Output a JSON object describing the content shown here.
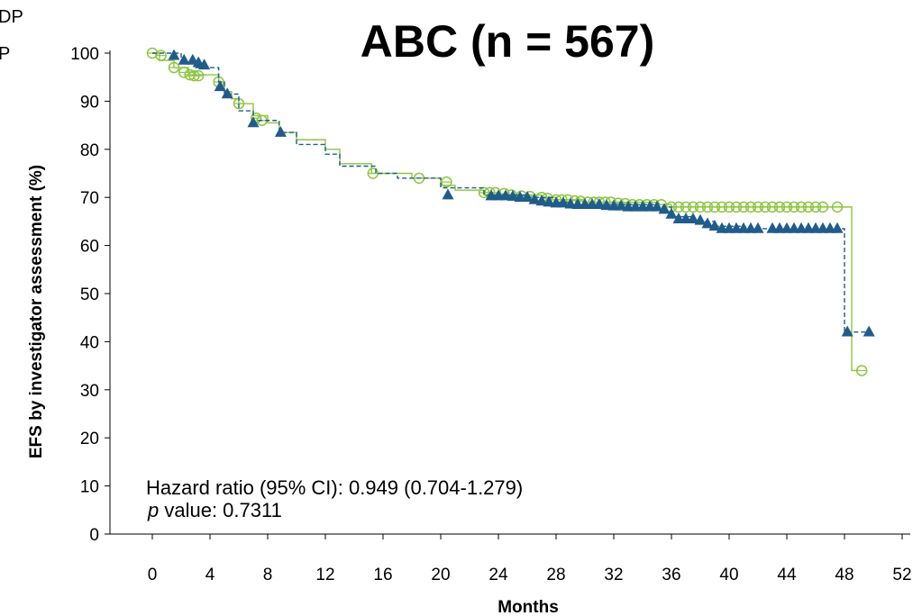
{
  "chart_data": {
    "type": "line",
    "title": "ABC (n = 567)",
    "xlabel": "Months",
    "ylabel": "EFS by investigator assessment (%)",
    "xlim": [
      -2,
      52
    ],
    "ylim": [
      0,
      100
    ],
    "x_ticks": [
      "0",
      "4",
      "8",
      "12",
      "16",
      "20",
      "24",
      "28",
      "32",
      "36",
      "40",
      "44",
      "48",
      "52"
    ],
    "y_ticks": [
      "0",
      "10",
      "20",
      "30",
      "40",
      "50",
      "60",
      "70",
      "80",
      "90",
      "100"
    ],
    "colors": {
      "green": "#8cc63f",
      "blue": "#1f5c8c"
    },
    "legend_fragments": [
      "DP",
      "P"
    ],
    "annotation": {
      "hazard": "Hazard ratio (95% CI): 0.949 (0.704-1.279)",
      "p_italic": "p",
      "p_rest": " value: 0.7311"
    },
    "series": [
      {
        "line": "solid",
        "marker": "open-circle",
        "color": "#8cc63f",
        "steps": [
          [
            0,
            100
          ],
          [
            0.5,
            98.5
          ],
          [
            1.5,
            97
          ],
          [
            2.5,
            96
          ],
          [
            3,
            95.5
          ],
          [
            4.6,
            94
          ],
          [
            5,
            92
          ],
          [
            5.5,
            90.5
          ],
          [
            6,
            89.5
          ],
          [
            7,
            87
          ],
          [
            8,
            85.5
          ],
          [
            8.8,
            83.5
          ],
          [
            10,
            82
          ],
          [
            12,
            80
          ],
          [
            13,
            77
          ],
          [
            15.2,
            75
          ],
          [
            18,
            74
          ],
          [
            20,
            72.5
          ],
          [
            21,
            71.5
          ],
          [
            23,
            70.5
          ],
          [
            27,
            70
          ],
          [
            28,
            69.5
          ],
          [
            30,
            69
          ],
          [
            35,
            68.5
          ],
          [
            36,
            68
          ],
          [
            48.5,
            68
          ],
          [
            48.5,
            34
          ],
          [
            49,
            34
          ]
        ],
        "censor": [
          [
            0,
            100
          ],
          [
            0.6,
            99.5
          ],
          [
            1.5,
            97
          ],
          [
            2.2,
            96
          ],
          [
            2.6,
            95.5
          ],
          [
            2.9,
            95.3
          ],
          [
            3.2,
            95.3
          ],
          [
            4.6,
            94
          ],
          [
            6,
            89.5
          ],
          [
            7.2,
            86.5
          ],
          [
            7.6,
            86
          ],
          [
            15.3,
            75
          ],
          [
            18.5,
            74
          ],
          [
            20.4,
            73.2
          ],
          [
            23,
            71
          ],
          [
            23.4,
            71
          ],
          [
            23.8,
            71
          ],
          [
            24.4,
            70.8
          ],
          [
            24.9,
            70.5
          ],
          [
            25.6,
            70.3
          ],
          [
            26.2,
            70.2
          ],
          [
            27,
            70
          ],
          [
            27.4,
            69.8
          ],
          [
            28,
            69.5
          ],
          [
            28.4,
            69.5
          ],
          [
            28.8,
            69.5
          ],
          [
            29.3,
            69.3
          ],
          [
            29.7,
            69.2
          ],
          [
            30.2,
            69
          ],
          [
            30.6,
            69
          ],
          [
            31,
            69
          ],
          [
            31.4,
            69
          ],
          [
            31.8,
            69
          ],
          [
            32.3,
            68.8
          ],
          [
            32.8,
            68.7
          ],
          [
            33.3,
            68.5
          ],
          [
            33.8,
            68.5
          ],
          [
            34.3,
            68.5
          ],
          [
            34.8,
            68.5
          ],
          [
            35.3,
            68.5
          ],
          [
            36,
            68
          ],
          [
            36.5,
            68
          ],
          [
            37,
            68
          ],
          [
            37.5,
            68
          ],
          [
            38,
            68
          ],
          [
            38.5,
            68
          ],
          [
            39,
            68
          ],
          [
            39.5,
            68
          ],
          [
            40,
            68
          ],
          [
            40.5,
            68
          ],
          [
            41,
            68
          ],
          [
            41.5,
            68
          ],
          [
            42,
            68
          ],
          [
            42.5,
            68
          ],
          [
            43,
            68
          ],
          [
            43.5,
            68
          ],
          [
            44,
            68
          ],
          [
            44.5,
            68
          ],
          [
            45,
            68
          ],
          [
            45.5,
            68
          ],
          [
            46,
            68
          ],
          [
            46.5,
            68
          ],
          [
            47.5,
            68
          ],
          [
            49.2,
            34
          ]
        ]
      },
      {
        "line": "dashed",
        "marker": "filled-triangle",
        "color": "#1f5c8c",
        "steps": [
          [
            0,
            100
          ],
          [
            2,
            98
          ],
          [
            3,
            97
          ],
          [
            4.6,
            94
          ],
          [
            5,
            91.5
          ],
          [
            6,
            88
          ],
          [
            7,
            86
          ],
          [
            8.8,
            83.5
          ],
          [
            10,
            81
          ],
          [
            12,
            79
          ],
          [
            13,
            76.5
          ],
          [
            15.5,
            75
          ],
          [
            17,
            74
          ],
          [
            20,
            72
          ],
          [
            23,
            70.5
          ],
          [
            26,
            70
          ],
          [
            28,
            69
          ],
          [
            29,
            68.5
          ],
          [
            35,
            68
          ],
          [
            36,
            66
          ],
          [
            37.5,
            65
          ],
          [
            39,
            64
          ],
          [
            41,
            63.5
          ],
          [
            48,
            63.5
          ],
          [
            48,
            42
          ],
          [
            49.5,
            42
          ]
        ],
        "censor": [
          [
            1.5,
            99.5
          ],
          [
            2.2,
            98.5
          ],
          [
            2.8,
            98.5
          ],
          [
            3.2,
            98
          ],
          [
            3.6,
            97.5
          ],
          [
            4.7,
            93
          ],
          [
            5.2,
            91.5
          ],
          [
            7,
            85.5
          ],
          [
            8.9,
            83.5
          ],
          [
            20.5,
            70.5
          ],
          [
            23.5,
            70.3
          ],
          [
            24,
            70.3
          ],
          [
            24.5,
            70.3
          ],
          [
            25,
            70.2
          ],
          [
            25.5,
            70
          ],
          [
            26,
            70
          ],
          [
            26.5,
            69.5
          ],
          [
            27,
            69.2
          ],
          [
            27.5,
            69
          ],
          [
            28,
            68.8
          ],
          [
            28.5,
            68.8
          ],
          [
            29,
            68.6
          ],
          [
            29.5,
            68.5
          ],
          [
            30,
            68.5
          ],
          [
            30.5,
            68.5
          ],
          [
            31,
            68.5
          ],
          [
            31.5,
            68.3
          ],
          [
            32,
            68.2
          ],
          [
            32.5,
            68.2
          ],
          [
            33,
            68
          ],
          [
            33.5,
            68
          ],
          [
            34,
            68
          ],
          [
            34.5,
            68
          ],
          [
            35,
            68
          ],
          [
            35.5,
            67.5
          ],
          [
            36,
            66.5
          ],
          [
            36.5,
            65.5
          ],
          [
            37,
            65.5
          ],
          [
            37.5,
            65.5
          ],
          [
            38,
            65.2
          ],
          [
            38.5,
            64.5
          ],
          [
            39,
            64
          ],
          [
            39.5,
            63.5
          ],
          [
            40,
            63.5
          ],
          [
            40.5,
            63.5
          ],
          [
            41,
            63.5
          ],
          [
            41.5,
            63.5
          ],
          [
            42,
            63.5
          ],
          [
            43,
            63.5
          ],
          [
            43.5,
            63.5
          ],
          [
            44,
            63.5
          ],
          [
            44.5,
            63.5
          ],
          [
            45,
            63.5
          ],
          [
            45.5,
            63.5
          ],
          [
            46,
            63.5
          ],
          [
            46.5,
            63.5
          ],
          [
            47,
            63.5
          ],
          [
            47.5,
            63.5
          ],
          [
            48.2,
            42
          ],
          [
            49.7,
            42
          ]
        ]
      }
    ]
  }
}
